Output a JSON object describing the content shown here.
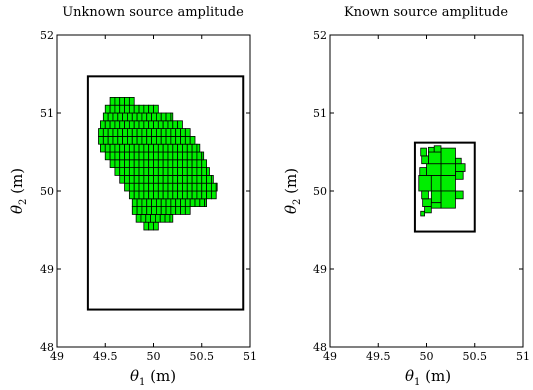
{
  "chart_data": [
    {
      "type": "box-paving",
      "title": "Unknown source amplitude",
      "xlabel": {
        "symbol": "θ",
        "sub": "1",
        "unit": " (m)"
      },
      "ylabel": {
        "symbol": "θ",
        "sub": "2",
        "unit": " (m)"
      },
      "xlim": [
        49,
        51
      ],
      "ylim": [
        48,
        52
      ],
      "xticks": [
        "49",
        "49.5",
        "50",
        "50.5",
        "51"
      ],
      "yticks": [
        "48",
        "49",
        "50",
        "51",
        "52"
      ],
      "xtick_values": [
        49,
        49.5,
        50,
        50.5,
        51
      ],
      "ytick_values": [
        48,
        49,
        50,
        51,
        52
      ],
      "box_fill": "#00ee00",
      "box_edge": "#000000",
      "search_box": {
        "x": [
          49.32,
          50.93
        ],
        "y": [
          48.48,
          51.47
        ]
      },
      "region_profile": [
        {
          "y": 49.55,
          "x": [
            49.9,
            50.05
          ]
        },
        {
          "y": 49.65,
          "x": [
            49.82,
            50.2
          ]
        },
        {
          "y": 49.75,
          "x": [
            49.78,
            50.38
          ]
        },
        {
          "y": 49.85,
          "x": [
            49.78,
            50.55
          ]
        },
        {
          "y": 49.95,
          "x": [
            49.75,
            50.65
          ]
        },
        {
          "y": 50.05,
          "x": [
            49.7,
            50.66
          ]
        },
        {
          "y": 50.15,
          "x": [
            49.65,
            50.62
          ]
        },
        {
          "y": 50.25,
          "x": [
            49.6,
            50.58
          ]
        },
        {
          "y": 50.35,
          "x": [
            49.55,
            50.55
          ]
        },
        {
          "y": 50.45,
          "x": [
            49.5,
            50.52
          ]
        },
        {
          "y": 50.55,
          "x": [
            49.45,
            50.48
          ]
        },
        {
          "y": 50.65,
          "x": [
            49.43,
            50.43
          ]
        },
        {
          "y": 50.75,
          "x": [
            49.43,
            50.38
          ]
        },
        {
          "y": 50.85,
          "x": [
            49.45,
            50.3
          ]
        },
        {
          "y": 50.95,
          "x": [
            49.48,
            50.2
          ]
        },
        {
          "y": 51.05,
          "x": [
            49.5,
            50.05
          ]
        },
        {
          "y": 51.15,
          "x": [
            49.55,
            49.8
          ]
        }
      ]
    },
    {
      "type": "box-paving",
      "title": "Known source amplitude",
      "xlabel": {
        "symbol": "θ",
        "sub": "1",
        "unit": " (m)"
      },
      "ylabel": {
        "symbol": "θ",
        "sub": "2",
        "unit": " (m)"
      },
      "xlim": [
        49,
        51
      ],
      "ylim": [
        48,
        52
      ],
      "xticks": [
        "49",
        "49.5",
        "50",
        "50.5",
        "51"
      ],
      "yticks": [
        "48",
        "49",
        "50",
        "51",
        "52"
      ],
      "xtick_values": [
        49,
        49.5,
        50,
        50.5,
        51
      ],
      "ytick_values": [
        48,
        49,
        50,
        51,
        52
      ],
      "box_fill": "#00ee00",
      "box_edge": "#000000",
      "search_box": {
        "x": [
          49.88,
          50.5
        ],
        "y": [
          49.48,
          50.62
        ]
      },
      "boxes": [
        [
          49.92,
          50.05,
          50.0,
          50.2
        ],
        [
          50.05,
          50.15,
          50.0,
          50.2
        ],
        [
          50.15,
          50.3,
          50.0,
          50.2
        ],
        [
          50.3,
          50.38,
          50.15,
          50.25
        ],
        [
          50.15,
          50.3,
          50.2,
          50.35
        ],
        [
          50.3,
          50.4,
          50.25,
          50.35
        ],
        [
          50.0,
          50.15,
          50.2,
          50.35
        ],
        [
          49.93,
          50.0,
          50.2,
          50.3
        ],
        [
          50.15,
          50.3,
          50.35,
          50.55
        ],
        [
          50.02,
          50.15,
          50.35,
          50.5
        ],
        [
          49.95,
          50.02,
          50.35,
          50.45
        ],
        [
          50.02,
          50.08,
          50.5,
          50.56
        ],
        [
          50.08,
          50.15,
          50.5,
          50.58
        ],
        [
          49.94,
          50.0,
          50.45,
          50.55
        ],
        [
          50.3,
          50.36,
          50.35,
          50.42
        ],
        [
          50.15,
          50.3,
          49.78,
          50.0
        ],
        [
          50.05,
          50.15,
          49.85,
          50.0
        ],
        [
          50.3,
          50.38,
          49.9,
          50.0
        ],
        [
          49.96,
          50.05,
          49.8,
          49.9
        ],
        [
          49.98,
          50.05,
          49.72,
          49.8
        ],
        [
          49.95,
          50.02,
          49.9,
          50.0
        ],
        [
          50.05,
          50.15,
          49.78,
          49.85
        ],
        [
          49.94,
          49.98,
          49.68,
          49.74
        ]
      ]
    }
  ]
}
